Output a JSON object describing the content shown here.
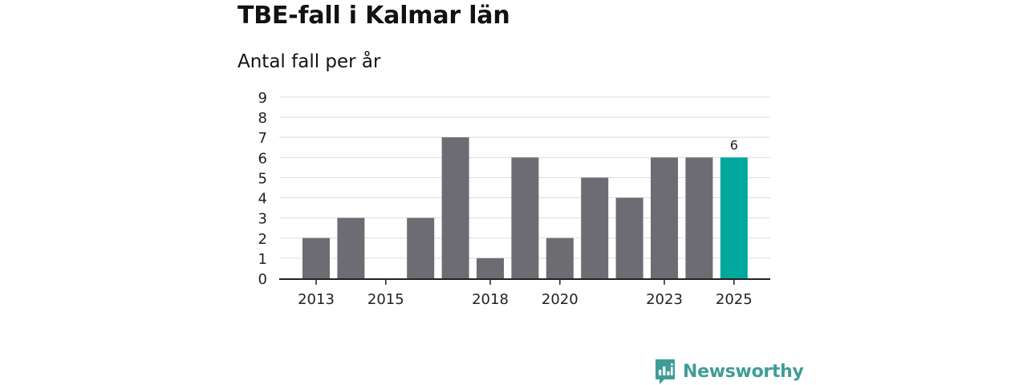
{
  "header": {
    "title": "TBE-fall i Kalmar län",
    "subtitle": "Antal fall per år"
  },
  "brand": {
    "name": "Newsworthy",
    "color": "#3f9d96"
  },
  "colors": {
    "bar": "#6d6c72",
    "highlight": "#00a79d",
    "grid": "#dddddd",
    "axis": "#222222"
  },
  "chart_data": {
    "type": "bar",
    "title": "TBE-fall i Kalmar län",
    "subtitle": "Antal fall per år",
    "xlabel": "",
    "ylabel": "",
    "categories": [
      "2013",
      "2014",
      "2015",
      "2016",
      "2017",
      "2018",
      "2019",
      "2020",
      "2021",
      "2022",
      "2023",
      "2024",
      "2025"
    ],
    "values": [
      2,
      3,
      0,
      3,
      7,
      1,
      6,
      2,
      5,
      4,
      6,
      6,
      6
    ],
    "ylim": [
      0,
      9
    ],
    "yticks": [
      0,
      1,
      2,
      3,
      4,
      5,
      6,
      7,
      8,
      9
    ],
    "xtick_labels": [
      "2013",
      "2015",
      "2018",
      "2020",
      "2023",
      "2025"
    ],
    "highlight_category": "2025",
    "data_labels": [
      {
        "category": "2025",
        "text": "6"
      }
    ],
    "grid": true,
    "legend": "none"
  }
}
